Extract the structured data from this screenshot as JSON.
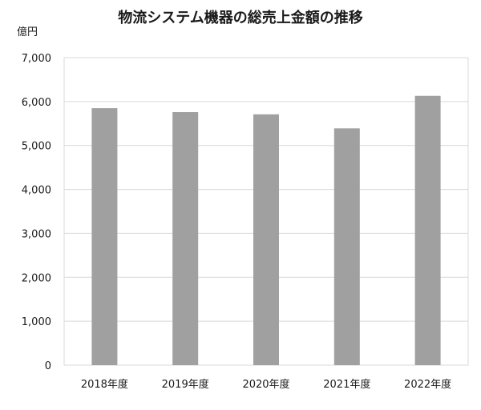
{
  "chart_data": {
    "type": "bar",
    "title": "物流システム機器の総売上金額の推移",
    "unit_label": "億円",
    "xlabel": "",
    "ylabel": "",
    "categories": [
      "2018年度",
      "2019年度",
      "2020年度",
      "2021年度",
      "2022年度"
    ],
    "series": [
      {
        "values": [
          5850,
          5760,
          5710,
          5390,
          6130
        ]
      }
    ],
    "ylim": [
      0,
      7000
    ],
    "yticks": [
      0,
      1000,
      2000,
      3000,
      4000,
      5000,
      6000,
      7000
    ],
    "ytick_labels": [
      "0",
      "1,000",
      "2,000",
      "3,000",
      "4,000",
      "5,000",
      "6,000",
      "7,000"
    ],
    "grid": true,
    "legend": "none",
    "bar_color": "#a0a0a0",
    "grid_color": "#d9d9d9"
  }
}
